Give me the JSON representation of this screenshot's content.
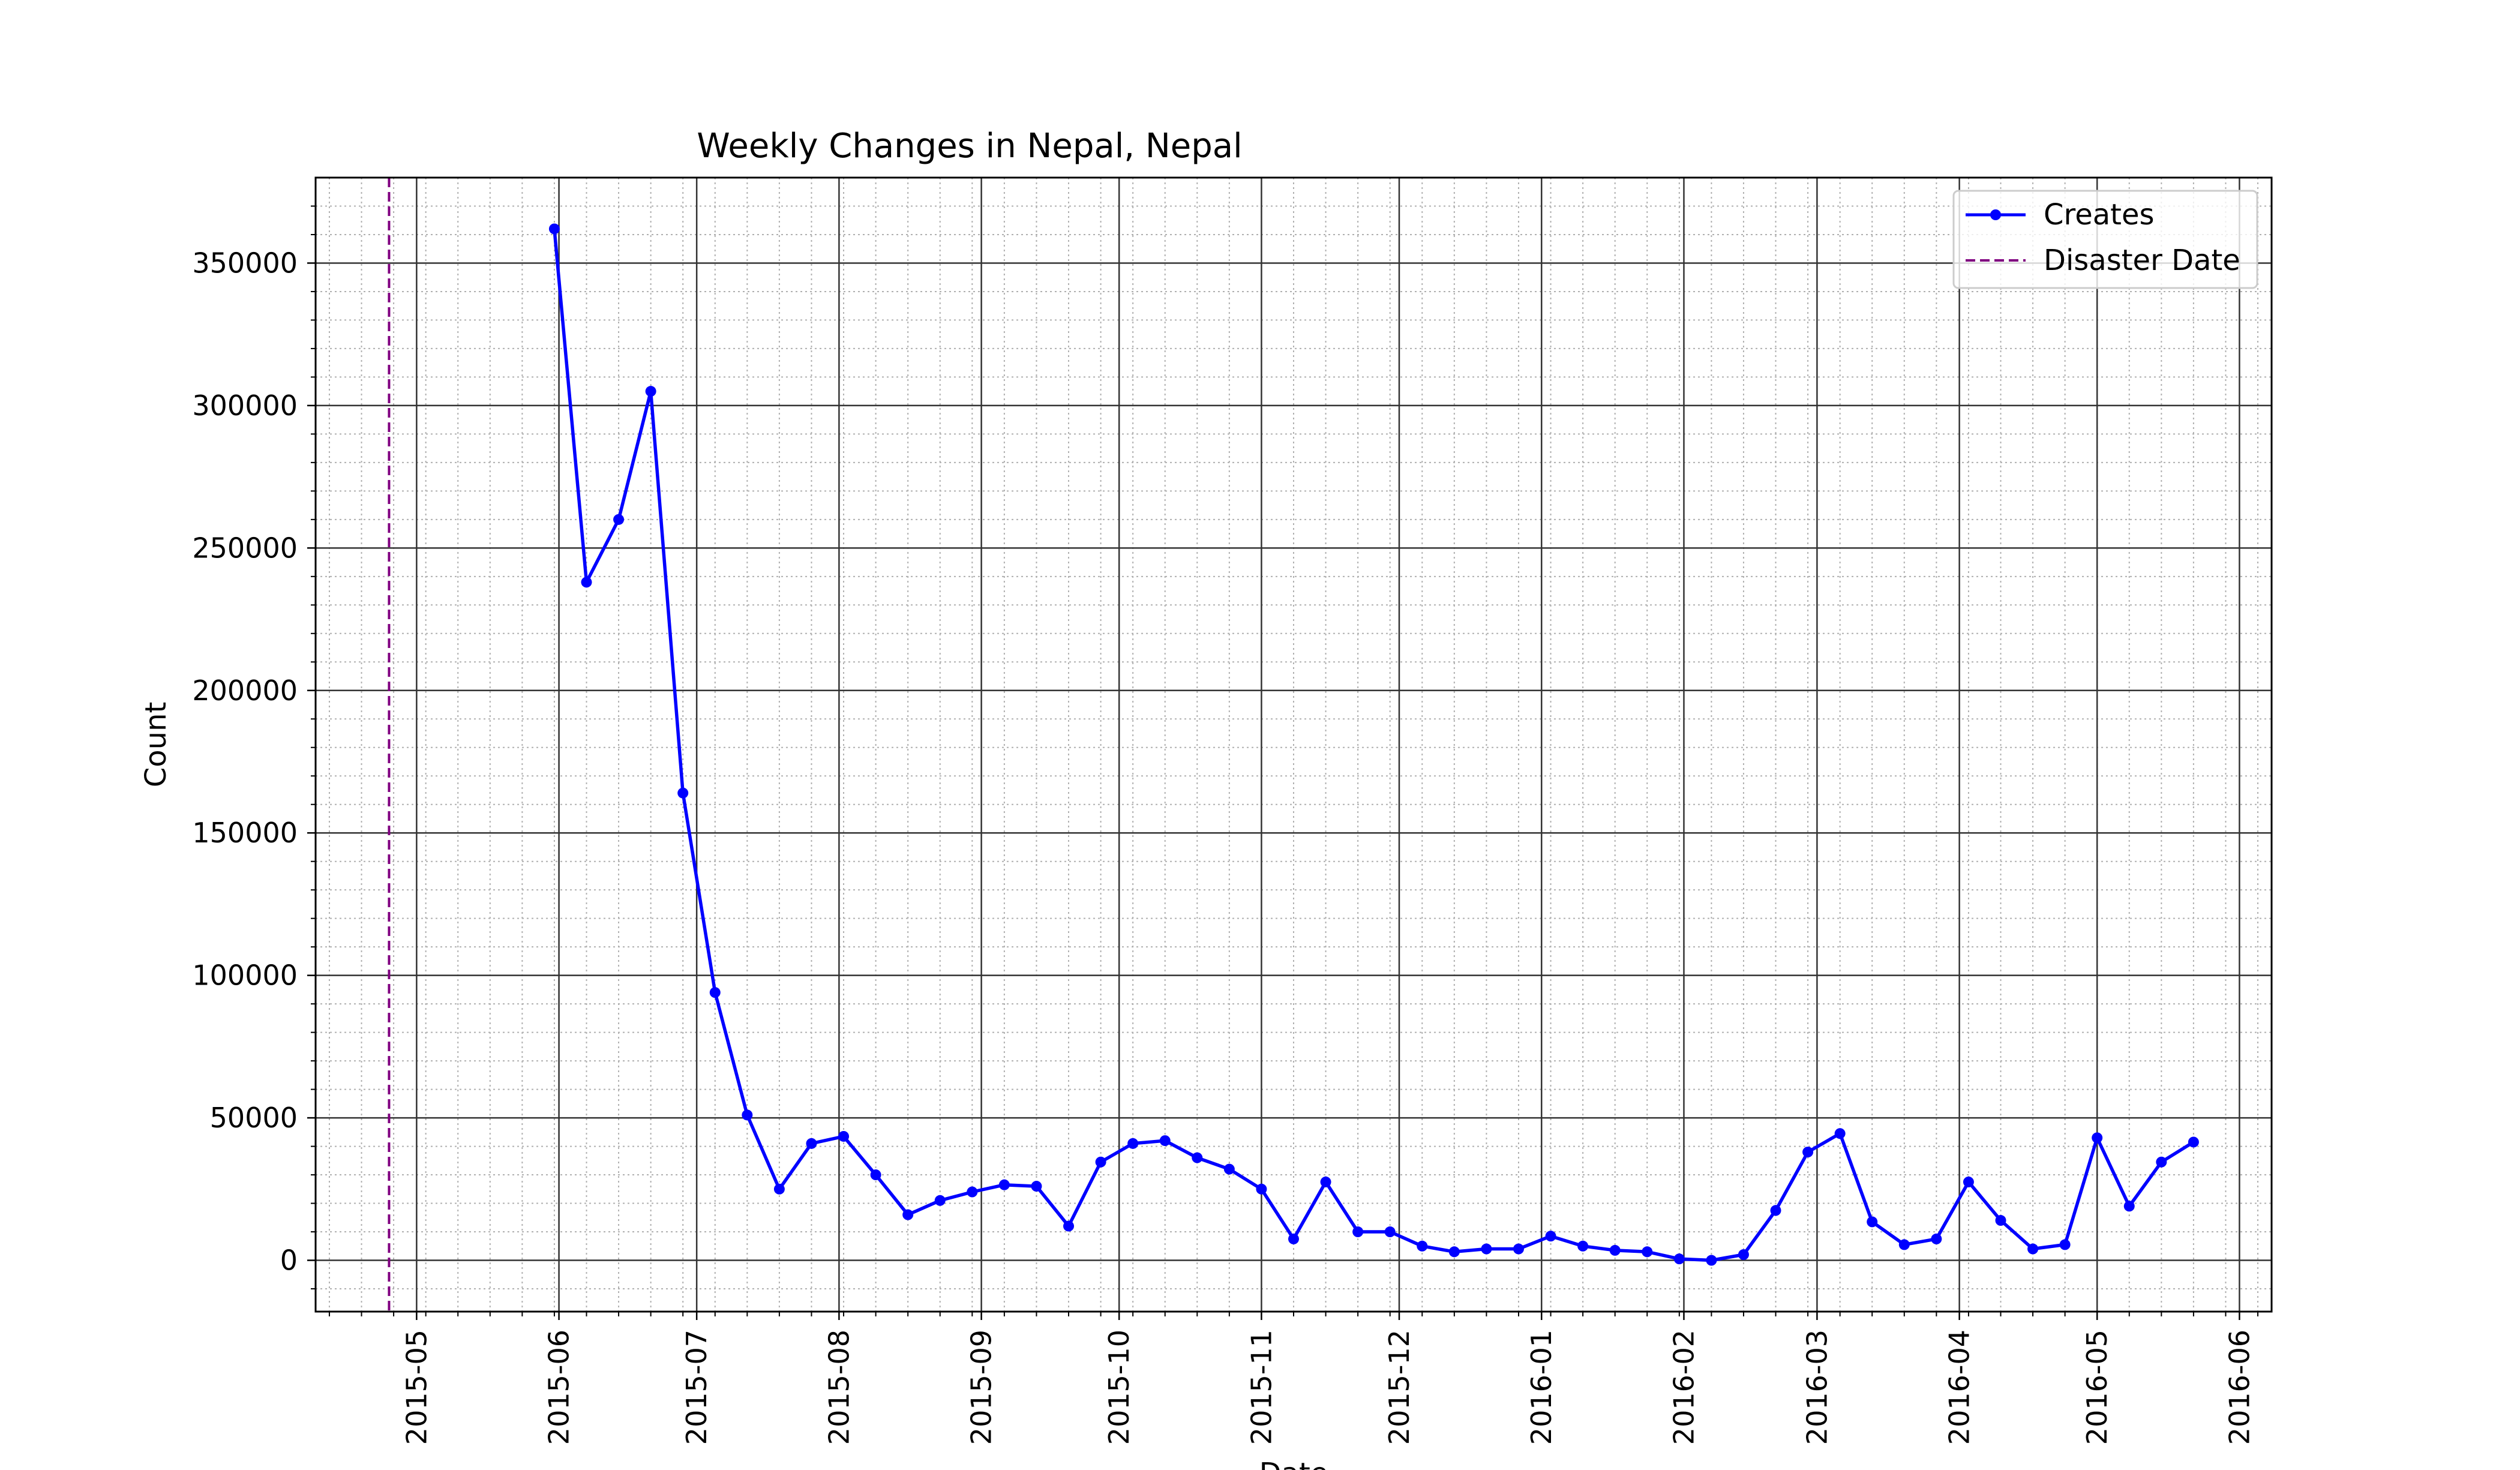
{
  "chart_data": {
    "type": "line",
    "title": "Weekly Changes in Nepal, Nepal",
    "xlabel": "Date",
    "ylabel": "Count",
    "xlim": [
      "2015-04-09",
      "2016-06-08"
    ],
    "ylim": [
      -18000,
      380000
    ],
    "grid": true,
    "legend_position": "top-right",
    "x_ticks": [
      "2015-05",
      "2015-06",
      "2015-07",
      "2015-08",
      "2015-09",
      "2015-10",
      "2015-11",
      "2015-12",
      "2016-01",
      "2016-02",
      "2016-03",
      "2016-04",
      "2016-05",
      "2016-06"
    ],
    "y_ticks": [
      "0",
      "50000",
      "100000",
      "150000",
      "200000",
      "250000",
      "300000",
      "350000"
    ],
    "series": [
      {
        "name": "Creates",
        "color": "#0000ff",
        "x": [
          "2015-05-31",
          "2015-06-07",
          "2015-06-14",
          "2015-06-21",
          "2015-06-28",
          "2015-07-05",
          "2015-07-12",
          "2015-07-19",
          "2015-07-26",
          "2015-08-02",
          "2015-08-09",
          "2015-08-16",
          "2015-08-23",
          "2015-08-30",
          "2015-09-06",
          "2015-09-13",
          "2015-09-20",
          "2015-09-27",
          "2015-10-04",
          "2015-10-11",
          "2015-10-18",
          "2015-10-25",
          "2015-11-01",
          "2015-11-08",
          "2015-11-15",
          "2015-11-22",
          "2015-11-29",
          "2015-12-06",
          "2015-12-13",
          "2015-12-20",
          "2015-12-27",
          "2016-01-03",
          "2016-01-10",
          "2016-01-17",
          "2016-01-24",
          "2016-01-31",
          "2016-02-07",
          "2016-02-14",
          "2016-02-21",
          "2016-02-28",
          "2016-03-06",
          "2016-03-13",
          "2016-03-20",
          "2016-03-27",
          "2016-04-03",
          "2016-04-10",
          "2016-04-17",
          "2016-04-24",
          "2016-05-01",
          "2016-05-08",
          "2016-05-15",
          "2016-05-22"
        ],
        "values": [
          362000,
          238000,
          260000,
          305000,
          164000,
          94000,
          51000,
          25000,
          41000,
          43500,
          30000,
          16000,
          21000,
          24000,
          26500,
          26000,
          12000,
          34500,
          41000,
          42000,
          36000,
          32000,
          25000,
          7500,
          27500,
          10000,
          10000,
          5000,
          3000,
          4000,
          4000,
          8500,
          5000,
          3500,
          3000,
          500,
          0,
          2000,
          17500,
          38000,
          44500,
          13500,
          5500,
          7500,
          27500,
          14000,
          4000,
          5500,
          43000,
          19000,
          34500,
          41500
        ]
      },
      {
        "name": "Disaster Date",
        "color": "#800080",
        "x": [
          "2015-04-25"
        ]
      }
    ]
  }
}
